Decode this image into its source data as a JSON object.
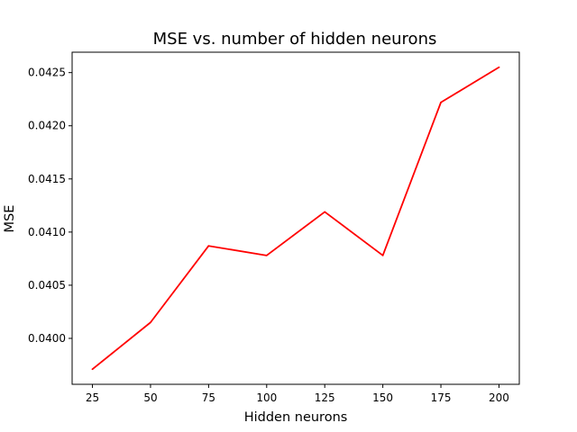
{
  "chart_data": {
    "type": "line",
    "title": "MSE vs. number of hidden neurons",
    "xlabel": "Hidden neurons",
    "ylabel": "MSE",
    "x": [
      25,
      50,
      75,
      100,
      125,
      150,
      175,
      200
    ],
    "series": [
      {
        "values": [
          0.03971,
          0.04015,
          0.04087,
          0.04078,
          0.04119,
          0.04078,
          0.04222,
          0.04255
        ],
        "color": "#ff0000"
      }
    ],
    "x_ticks": [
      "25",
      "50",
      "75",
      "100",
      "125",
      "150",
      "175",
      "200"
    ],
    "y_ticks": [
      "0.0400",
      "0.0405",
      "0.0410",
      "0.0415",
      "0.0420",
      "0.0425"
    ],
    "xlim": [
      16.25,
      208.75
    ],
    "ylim": [
      0.039568,
      0.042692
    ],
    "grid": false,
    "legend": "none"
  }
}
